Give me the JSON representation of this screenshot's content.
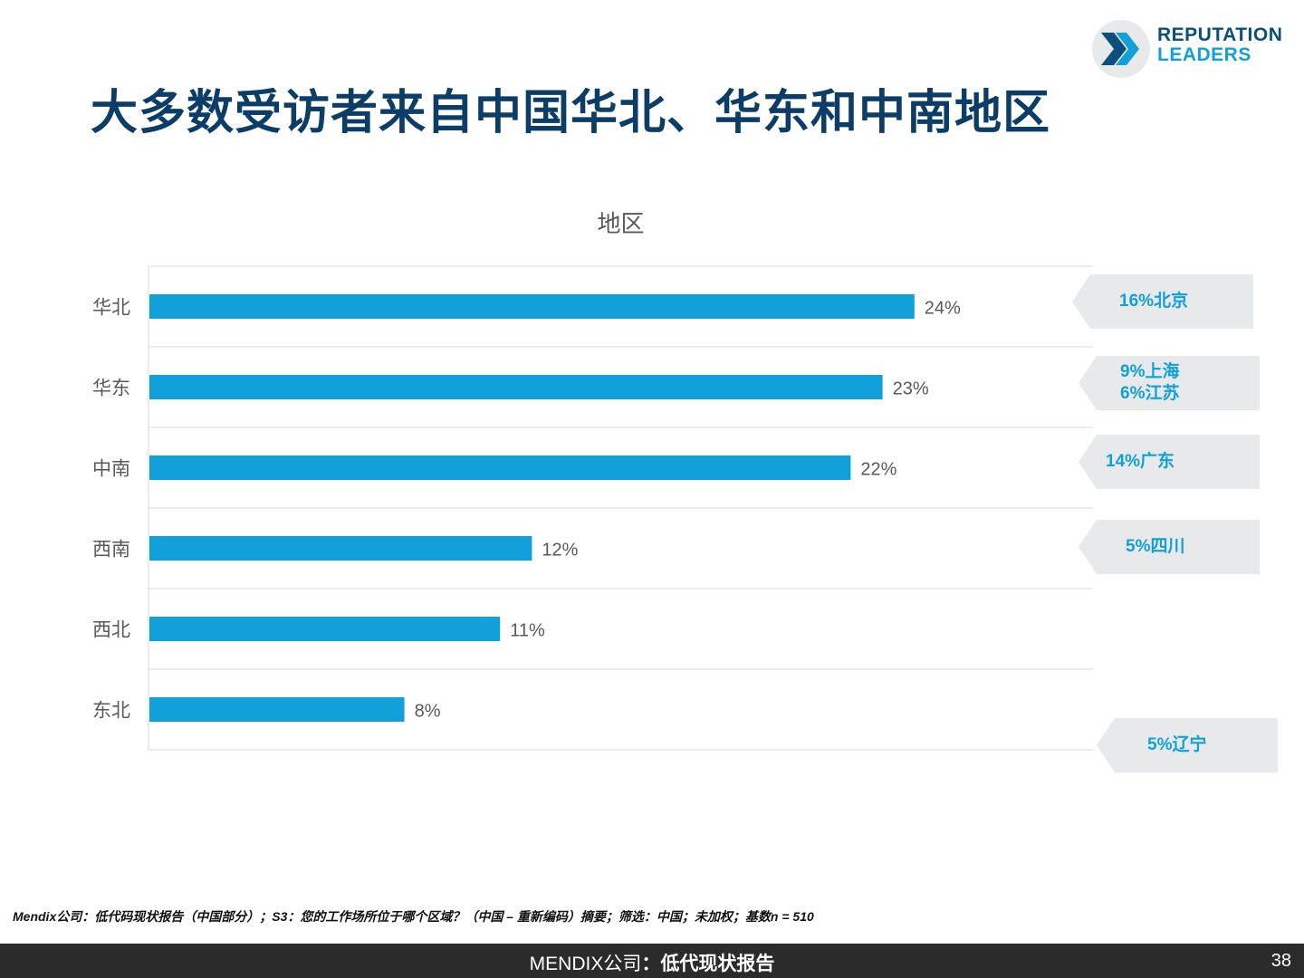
{
  "logo": {
    "line1": "REPUTATION",
    "line2": "LEADERS"
  },
  "page_title": "大多数受访者来自中国华北、华东和中南地区",
  "chart_data": {
    "type": "bar",
    "orientation": "horizontal",
    "title": "地区",
    "categories": [
      "华北",
      "华东",
      "中南",
      "西南",
      "西北",
      "东北"
    ],
    "values": [
      24,
      23,
      22,
      12,
      11,
      8
    ],
    "value_labels": [
      "24%",
      "23%",
      "22%",
      "12%",
      "11%",
      "8%"
    ],
    "xlim": [
      0,
      30
    ],
    "grid": true,
    "bar_color": "#11a0d9",
    "annotations": [
      {
        "category": "华北",
        "lines": [
          "16%北京"
        ]
      },
      {
        "category": "华东",
        "lines": [
          "9%上海",
          "6%江苏"
        ]
      },
      {
        "category": "中南",
        "lines": [
          "14%广东"
        ]
      },
      {
        "category": "西南",
        "lines": [
          "5%四川"
        ]
      },
      {
        "category": "东北",
        "lines": [
          "5%辽宁"
        ]
      }
    ]
  },
  "footnote": "Mendix公司：低代码现状报告（中国部分）；S3：您的工作场所位于哪个区域？（中国 – 重新编码）摘要；筛选：中国；未加权；基数n = 510",
  "footer": {
    "brand": "MENDIX公司",
    "separator": "：",
    "report": "低代现状报告",
    "page_number": "38"
  },
  "colors": {
    "title": "#0b3d66",
    "accent": "#11a0d9",
    "callout_bg": "#e8e9eb",
    "footer_bg": "#2b2b2b"
  }
}
